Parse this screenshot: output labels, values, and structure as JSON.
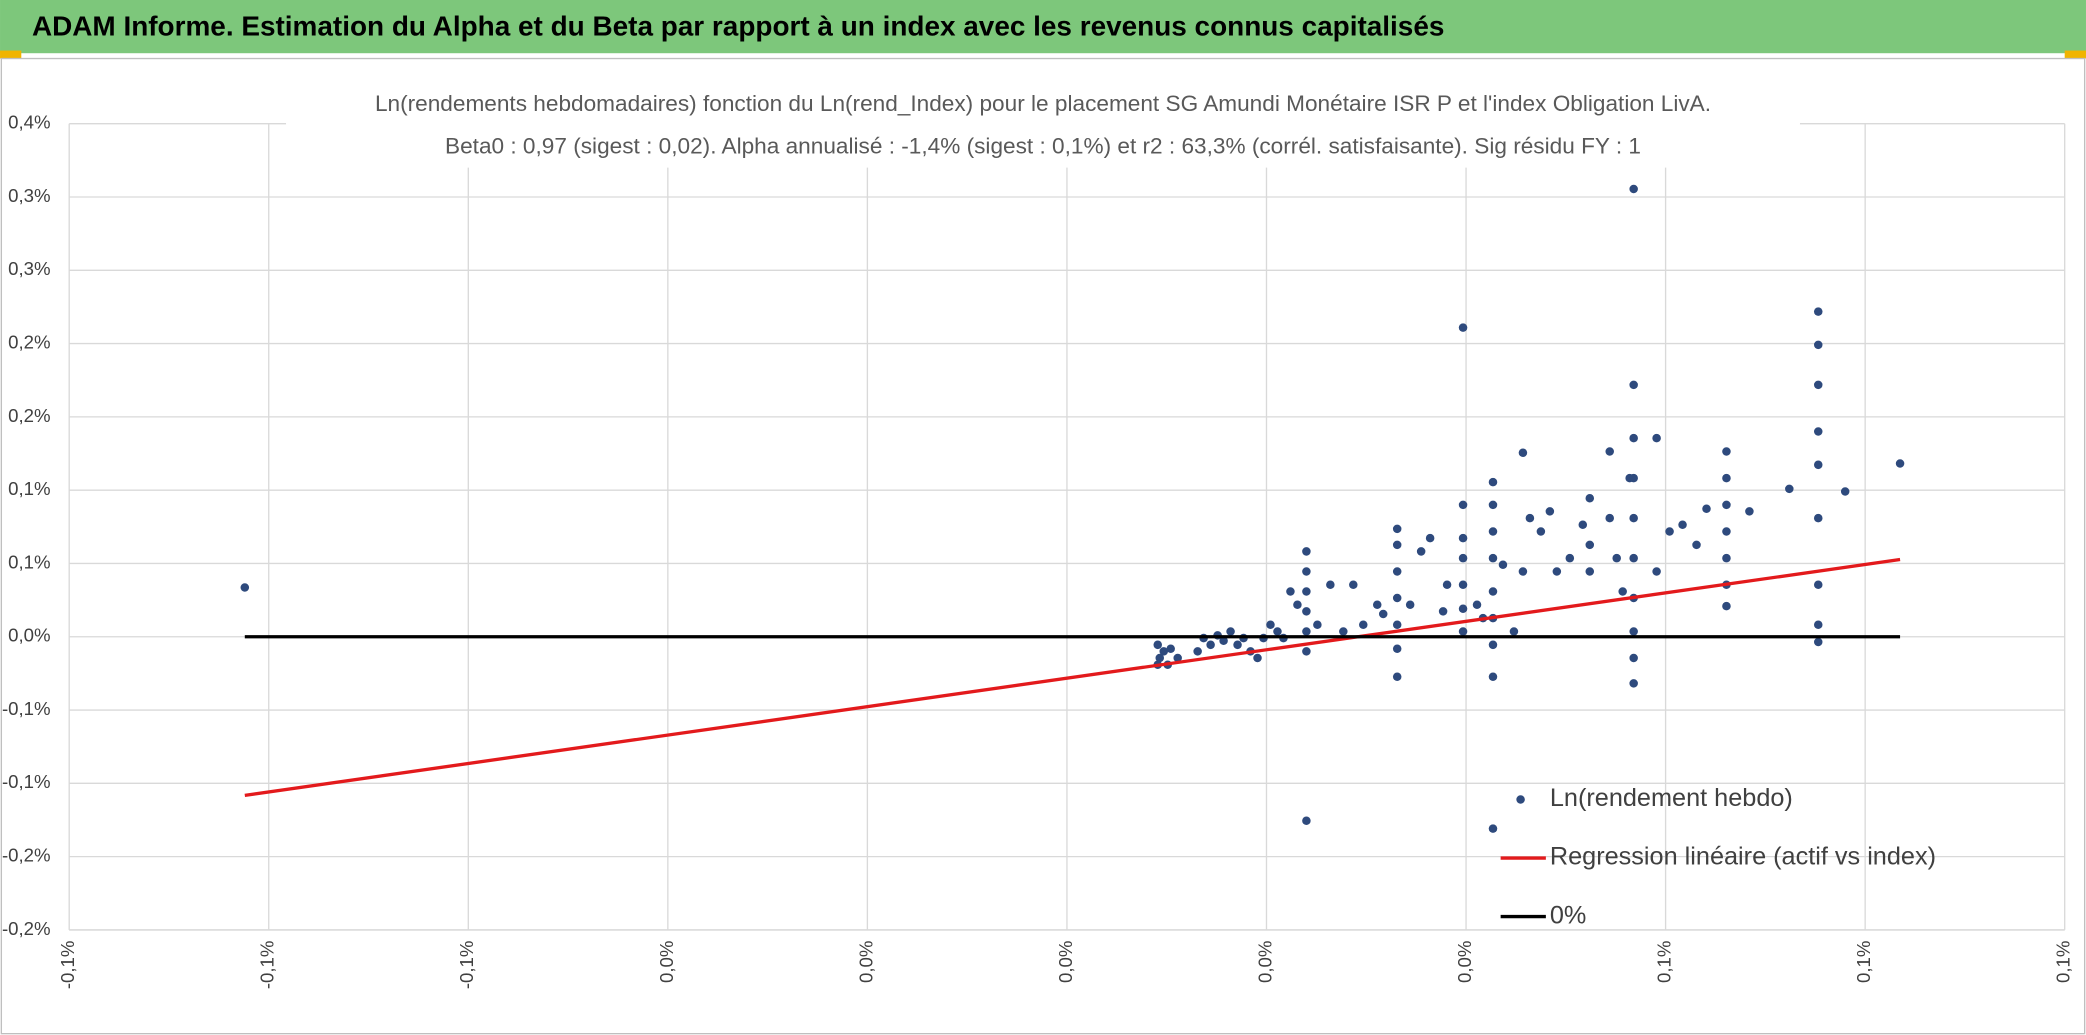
{
  "header": {
    "title": "ADAM Informe. Estimation du Alpha et du Beta par rapport à un index avec les revenus connus capitalisés"
  },
  "chart_data": {
    "type": "scatter",
    "title": "Ln(rendements hebdomadaires) fonction du Ln(rend_Index) pour le placement SG Amundi Monétaire ISR P et l'index Obligation LivA.",
    "subtitle": "Beta0 : 0,97 (sigest : 0,02). Alpha annualisé : -1,4% (sigest : 0,1%) et r2 : 63,3% (corrél. satisfaisante). Sig résidu FY : 1",
    "xlim": [
      -0.1,
      0.1
    ],
    "ylim": [
      -0.2,
      0.35
    ],
    "xticks": [
      {
        "value": -0.1,
        "label": "-0,1%"
      },
      {
        "value": -0.08,
        "label": "-0,1%"
      },
      {
        "value": -0.06,
        "label": "-0,1%"
      },
      {
        "value": -0.04,
        "label": "0,0%"
      },
      {
        "value": -0.02,
        "label": "0,0%"
      },
      {
        "value": 0,
        "label": "0,0%"
      },
      {
        "value": 0.02,
        "label": "0,0%"
      },
      {
        "value": 0.04,
        "label": "0,0%"
      },
      {
        "value": 0.06,
        "label": "0,1%"
      },
      {
        "value": 0.08,
        "label": "0,1%"
      },
      {
        "value": 0.1,
        "label": "0,1%"
      }
    ],
    "yticks": [
      {
        "value": -0.2,
        "label": "-0,2%"
      },
      {
        "value": -0.15,
        "label": "-0,2%"
      },
      {
        "value": -0.1,
        "label": "-0,1%"
      },
      {
        "value": -0.05,
        "label": "-0,1%"
      },
      {
        "value": 0,
        "label": "0,0%"
      },
      {
        "value": 0.05,
        "label": "0,1%"
      },
      {
        "value": 0.1,
        "label": "0,1%"
      },
      {
        "value": 0.15,
        "label": "0,2%"
      },
      {
        "value": 0.2,
        "label": "0,2%"
      },
      {
        "value": 0.25,
        "label": "0,3%"
      },
      {
        "value": 0.3,
        "label": "0,3%"
      },
      {
        "value": 0.35,
        "label": "0,4%"
      }
    ],
    "grid": true,
    "legend": "bottom-right",
    "series": [
      {
        "name": "Ln(rendement hebdo)",
        "color": "#2e4a7d",
        "mode": "markers",
        "x": [
          -0.0824,
          0.0091,
          0.0093,
          0.0097,
          0.0101,
          0.0104,
          0.0111,
          0.0091,
          0.0131,
          0.0137,
          0.0144,
          0.0151,
          0.0157,
          0.0164,
          0.0171,
          0.0177,
          0.0184,
          0.0191,
          0.0197,
          0.0204,
          0.0211,
          0.0217,
          0.0224,
          0.0231,
          0.024,
          0.024,
          0.024,
          0.024,
          0.024,
          0.024,
          0.024,
          0.0251,
          0.0264,
          0.0277,
          0.0287,
          0.0297,
          0.0311,
          0.0317,
          0.0331,
          0.0331,
          0.0331,
          0.0331,
          0.0331,
          0.0331,
          0.0331,
          0.0344,
          0.0355,
          0.0364,
          0.0377,
          0.0381,
          0.0397,
          0.0397,
          0.0397,
          0.0397,
          0.0397,
          0.0397,
          0.0397,
          0.0411,
          0.0417,
          0.0427,
          0.0427,
          0.0427,
          0.0427,
          0.0427,
          0.0427,
          0.0427,
          0.0427,
          0.0427,
          0.0437,
          0.0448,
          0.0457,
          0.0457,
          0.0464,
          0.0475,
          0.0484,
          0.0491,
          0.0504,
          0.0517,
          0.0524,
          0.0524,
          0.0524,
          0.0544,
          0.0544,
          0.0551,
          0.0557,
          0.0564,
          0.0568,
          0.0568,
          0.0568,
          0.0568,
          0.0568,
          0.0568,
          0.0568,
          0.0568,
          0.0568,
          0.0568,
          0.0591,
          0.0591,
          0.0604,
          0.0617,
          0.0631,
          0.0641,
          0.0661,
          0.0661,
          0.0661,
          0.0661,
          0.0661,
          0.0661,
          0.0661,
          0.0684,
          0.0724,
          0.0753,
          0.0753,
          0.0753,
          0.0753,
          0.0753,
          0.0753,
          0.0753,
          0.0753,
          0.0753,
          0.078,
          0.0835
        ],
        "values": [
          0.0336,
          -0.0055,
          -0.0145,
          -0.01,
          -0.0191,
          -0.0082,
          -0.0145,
          -0.0191,
          -0.01,
          -0.0009,
          -0.0055,
          0.0009,
          -0.0027,
          0.0036,
          -0.0055,
          -0.0009,
          -0.01,
          -0.0145,
          -0.0009,
          0.0082,
          0.0036,
          -0.0009,
          0.0309,
          0.0218,
          0.0582,
          0.0445,
          0.0309,
          0.0173,
          0.0036,
          -0.01,
          -0.1255,
          0.0082,
          0.0355,
          0.0036,
          0.0355,
          0.0082,
          0.0218,
          0.0155,
          0.0736,
          0.0627,
          0.0445,
          0.0264,
          0.0082,
          -0.0082,
          -0.0273,
          0.0218,
          0.0582,
          0.0673,
          0.0173,
          0.0355,
          0.2109,
          0.09,
          0.0673,
          0.0536,
          0.0355,
          0.0191,
          0.0036,
          0.0218,
          0.0127,
          0.1055,
          0.09,
          0.0718,
          0.0536,
          0.0309,
          0.0127,
          -0.0055,
          -0.0273,
          -0.1309,
          0.0491,
          0.0036,
          0.1255,
          0.0445,
          0.0809,
          0.0718,
          0.0855,
          0.0445,
          0.0536,
          0.0764,
          0.0945,
          0.0627,
          0.0445,
          0.1264,
          0.0809,
          0.0536,
          0.0309,
          0.1082,
          0.3055,
          0.1718,
          0.1355,
          0.1082,
          0.0809,
          0.0536,
          0.0264,
          0.0036,
          -0.0145,
          -0.0318,
          0.1355,
          0.0445,
          0.0718,
          0.0764,
          0.0627,
          0.0873,
          0.1264,
          0.1082,
          0.09,
          0.0718,
          0.0536,
          0.0355,
          0.0209,
          0.0855,
          0.1009,
          0.2218,
          0.1991,
          0.1718,
          0.14,
          0.1173,
          0.0809,
          0.0355,
          0.0082,
          -0.0036,
          0.0991,
          0.1182
        ]
      },
      {
        "name": "Regression linéaire (actif vs index)",
        "color": "#e31a1c",
        "mode": "line",
        "x": [
          -0.0824,
          0.0835
        ],
        "values": [
          -0.1082,
          0.0527
        ]
      },
      {
        "name": "0%",
        "color": "#000000",
        "mode": "line",
        "x": [
          -0.0824,
          0.0835
        ],
        "values": [
          0,
          0
        ]
      }
    ]
  }
}
